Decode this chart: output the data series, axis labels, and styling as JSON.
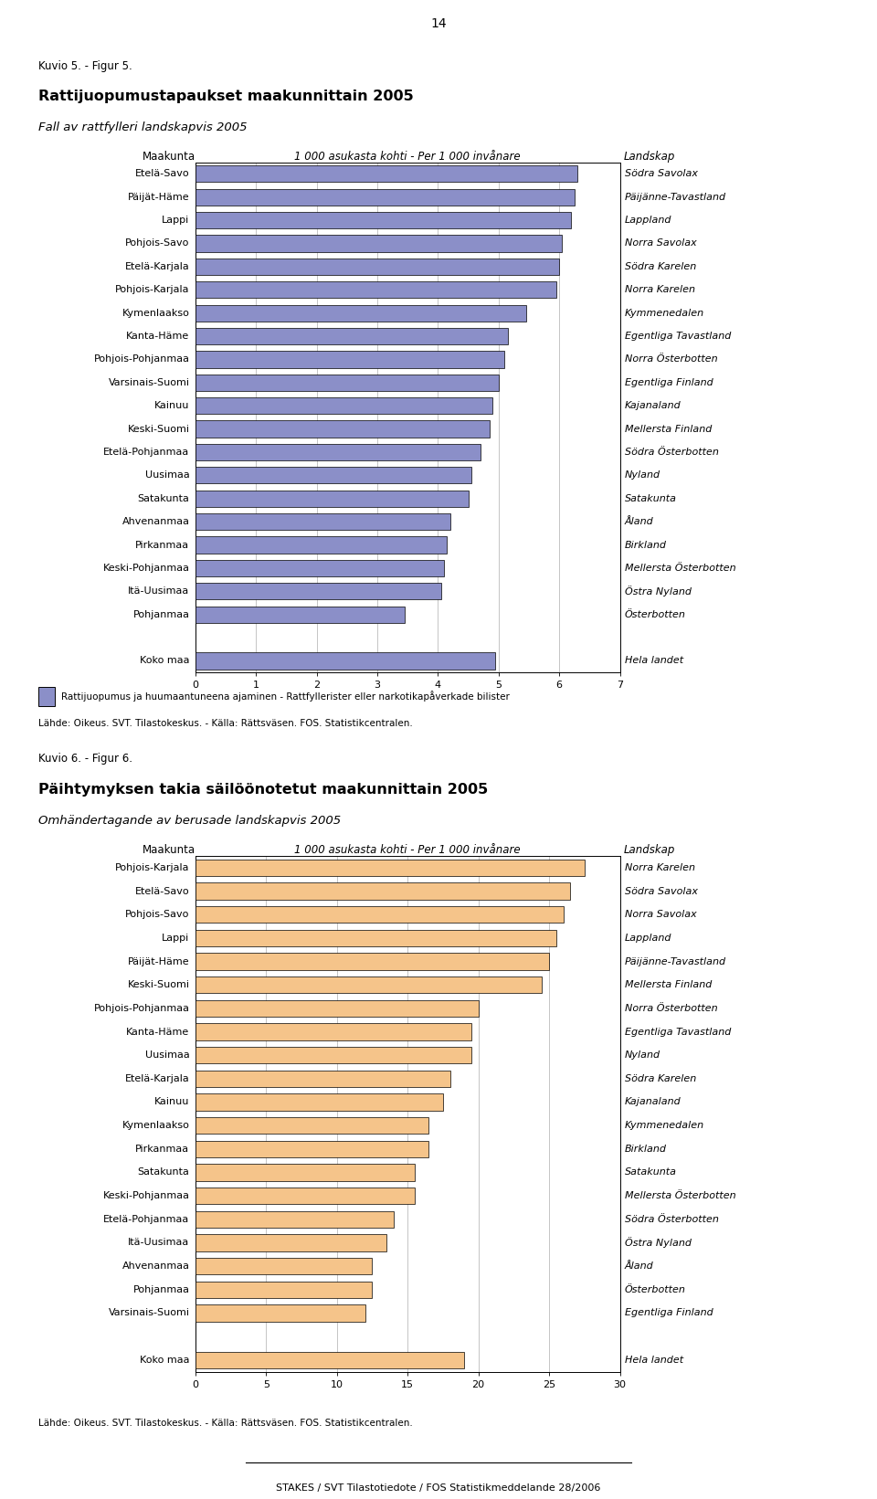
{
  "page_number": "14",
  "chart1": {
    "title_line1": "Kuvio 5. - Figur 5.",
    "title_line2": "Rattijuopumustapaukset maakunnittain 2005",
    "title_line3": "Fall av rattfylleri landskapvis 2005",
    "col_header_left": "Maakunta",
    "col_header_center": "1 000 asukasta kohti - Per 1 000 invånare",
    "col_header_right": "Landskap",
    "categories": [
      "Etelä-Savo",
      "Päijät-Häme",
      "Lappi",
      "Pohjois-Savo",
      "Etelä-Karjala",
      "Pohjois-Karjala",
      "Kymenlaakso",
      "Kanta-Häme",
      "Pohjois-Pohjanmaa",
      "Varsinais-Suomi",
      "Kainuu",
      "Keski-Suomi",
      "Etelä-Pohjanmaa",
      "Uusimaa",
      "Satakunta",
      "Ahvenanmaa",
      "Pirkanmaa",
      "Keski-Pohjanmaa",
      "Itä-Uusimaa",
      "Pohjanmaa"
    ],
    "values": [
      6.3,
      6.25,
      6.2,
      6.05,
      6.0,
      5.95,
      5.45,
      5.15,
      5.1,
      5.0,
      4.9,
      4.85,
      4.7,
      4.55,
      4.5,
      4.2,
      4.15,
      4.1,
      4.05,
      3.45
    ],
    "koko_maa": 4.95,
    "right_labels": [
      "Södra Savolax",
      "Päijänne-Tavastland",
      "Lappland",
      "Norra Savolax",
      "Södra Karelen",
      "Norra Karelen",
      "Kymmenedalen",
      "Egentliga Tavastland",
      "Norra Österbotten",
      "Egentliga Finland",
      "Kajanaland",
      "Mellersta Finland",
      "Södra Österbotten",
      "Nyland",
      "Satakunta",
      "Åland",
      "Birkland",
      "Mellersta Österbotten",
      "Östra Nyland",
      "Österbotten"
    ],
    "koko_maa_right": "Hela landet",
    "bar_color": "#8b8fc8",
    "xlim": [
      0,
      7
    ],
    "xticks": [
      0,
      1,
      2,
      3,
      4,
      5,
      6,
      7
    ],
    "legend_label": "Rattijuopumus ja huumaantuneena ajaminen - Rattfyllerister eller narkotikapåverkade bilister",
    "source": "Lähde: Oikeus. SVT. Tilastokeskus. - Källa: Rättsväsen. FOS. Statistikcentralen."
  },
  "chart2": {
    "title_line1": "Kuvio 6. - Figur 6.",
    "title_line2": "Päihtymyksen takia säilöönotetut maakunnittain 2005",
    "title_line3": "Omhändertagande av berusade landskapvis 2005",
    "col_header_left": "Maakunta",
    "col_header_center": "1 000 asukasta kohti - Per 1 000 invånare",
    "col_header_right": "Landskap",
    "categories": [
      "Pohjois-Karjala",
      "Etelä-Savo",
      "Pohjois-Savo",
      "Lappi",
      "Päijät-Häme",
      "Keski-Suomi",
      "Pohjois-Pohjanmaa",
      "Kanta-Häme",
      "Uusimaa",
      "Etelä-Karjala",
      "Kainuu",
      "Kymenlaakso",
      "Pirkanmaa",
      "Satakunta",
      "Keski-Pohjanmaa",
      "Etelä-Pohjanmaa",
      "Itä-Uusimaa",
      "Ahvenanmaa",
      "Pohjanmaa",
      "Varsinais-Suomi"
    ],
    "values": [
      27.5,
      26.5,
      26.0,
      25.5,
      25.0,
      24.5,
      20.0,
      19.5,
      19.5,
      18.0,
      17.5,
      16.5,
      16.5,
      15.5,
      15.5,
      14.0,
      13.5,
      12.5,
      12.5,
      12.0
    ],
    "koko_maa": 19.0,
    "right_labels": [
      "Norra Karelen",
      "Södra Savolax",
      "Norra Savolax",
      "Lappland",
      "Päijänne-Tavastland",
      "Mellersta Finland",
      "Norra Österbotten",
      "Egentliga Tavastland",
      "Nyland",
      "Södra Karelen",
      "Kajanaland",
      "Kymmenedalen",
      "Birkland",
      "Satakunta",
      "Mellersta Österbotten",
      "Södra Österbotten",
      "Östra Nyland",
      "Åland",
      "Österbotten",
      "Egentliga Finland"
    ],
    "koko_maa_right": "Hela landet",
    "bar_color": "#f5c48a",
    "xlim": [
      0,
      30
    ],
    "xticks": [
      0,
      5,
      10,
      15,
      20,
      25,
      30
    ],
    "legend_label": "",
    "source": "Lähde: Oikeus. SVT. Tilastokeskus. - Källa: Rättsväsen. FOS. Statistikcentralen."
  },
  "footer": "STAKES / SVT Tilastotiedote / FOS Statistikmeddelande 28/2006",
  "bg_color": "#ffffff",
  "grid_color": "#bbbbbb",
  "text_color": "#000000"
}
